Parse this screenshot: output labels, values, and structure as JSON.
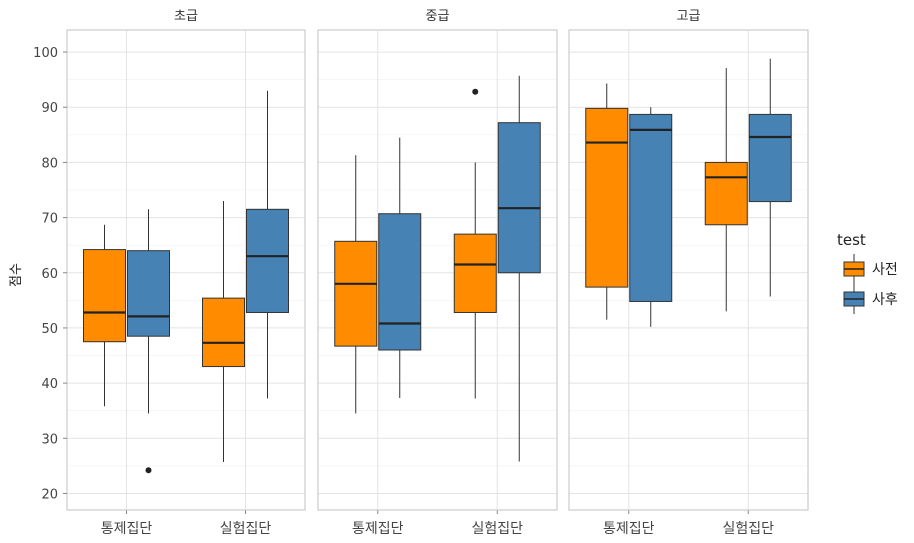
{
  "chart_data": {
    "type": "boxplot",
    "ylabel": "점수",
    "ylim": [
      17,
      104
    ],
    "yticks": [
      20,
      30,
      40,
      50,
      60,
      70,
      80,
      90,
      100
    ],
    "grid": true,
    "legend_placement": "right",
    "legend": {
      "title": "test",
      "entries": [
        {
          "key": "pre",
          "label": "사전",
          "color": "#FF8C00"
        },
        {
          "key": "post",
          "label": "사후",
          "color": "#4682B4"
        }
      ]
    },
    "panels": [
      {
        "title": "초급",
        "groups": [
          {
            "category": "통제집단",
            "boxes": [
              {
                "series": "pre",
                "min": 35.8,
                "q1": 47.5,
                "median": 52.8,
                "q3": 64.2,
                "max": 68.7,
                "outliers": []
              },
              {
                "series": "post",
                "min": 34.5,
                "q1": 48.5,
                "median": 52.1,
                "q3": 64.0,
                "max": 71.5,
                "outliers": [
                  24.2
                ]
              }
            ]
          },
          {
            "category": "실험집단",
            "boxes": [
              {
                "series": "pre",
                "min": 25.7,
                "q1": 43.0,
                "median": 47.3,
                "q3": 55.4,
                "max": 73.0,
                "outliers": []
              },
              {
                "series": "post",
                "min": 37.2,
                "q1": 52.8,
                "median": 63.0,
                "q3": 71.5,
                "max": 93.0,
                "outliers": []
              }
            ]
          }
        ]
      },
      {
        "title": "중급",
        "groups": [
          {
            "category": "통제집단",
            "boxes": [
              {
                "series": "pre",
                "min": 34.5,
                "q1": 46.7,
                "median": 58.0,
                "q3": 65.7,
                "max": 81.3,
                "outliers": []
              },
              {
                "series": "post",
                "min": 37.3,
                "q1": 46.0,
                "median": 50.8,
                "q3": 70.7,
                "max": 84.5,
                "outliers": []
              }
            ]
          },
          {
            "category": "실험집단",
            "boxes": [
              {
                "series": "pre",
                "min": 37.2,
                "q1": 52.8,
                "median": 61.5,
                "q3": 67.0,
                "max": 80.0,
                "outliers": [
                  92.8
                ]
              },
              {
                "series": "post",
                "min": 25.8,
                "q1": 60.0,
                "median": 71.7,
                "q3": 87.2,
                "max": 95.7,
                "outliers": []
              }
            ]
          }
        ]
      },
      {
        "title": "고급",
        "groups": [
          {
            "category": "통제집단",
            "boxes": [
              {
                "series": "pre",
                "min": 51.5,
                "q1": 57.4,
                "median": 83.6,
                "q3": 89.8,
                "max": 94.3,
                "outliers": []
              },
              {
                "series": "post",
                "min": 50.2,
                "q1": 54.8,
                "median": 85.9,
                "q3": 88.7,
                "max": 90.0,
                "outliers": []
              }
            ]
          },
          {
            "category": "실험집단",
            "boxes": [
              {
                "series": "pre",
                "min": 53.0,
                "q1": 68.7,
                "median": 77.3,
                "q3": 80.0,
                "max": 97.1,
                "outliers": []
              },
              {
                "series": "post",
                "min": 55.7,
                "q1": 72.9,
                "median": 84.6,
                "q3": 88.7,
                "max": 98.8,
                "outliers": []
              }
            ]
          }
        ]
      }
    ]
  }
}
